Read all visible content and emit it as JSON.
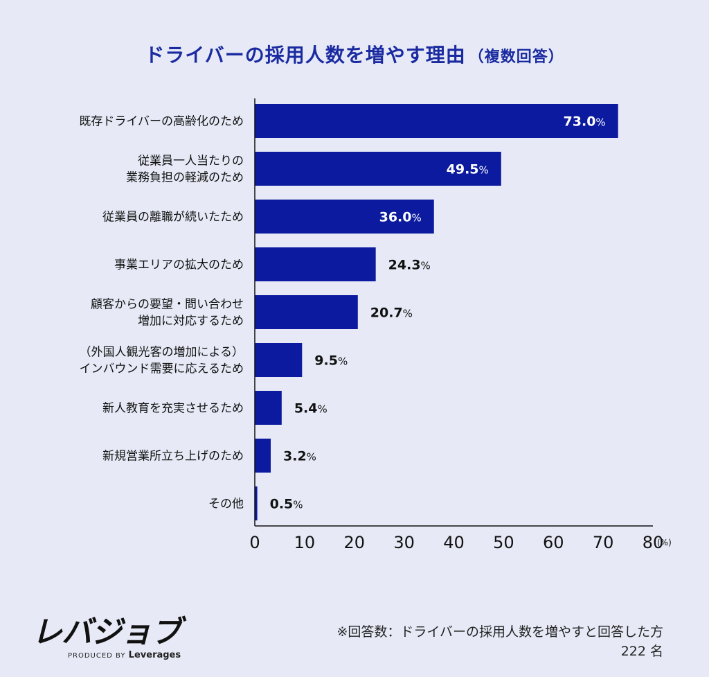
{
  "title": {
    "main": "ドライバーの採用人数を増やす理由",
    "sub": "（複数回答）"
  },
  "chart_data": {
    "type": "bar",
    "orientation": "horizontal",
    "title": "ドライバーの採用人数を増やす理由（複数回答）",
    "categories": [
      [
        "既存ドライバーの高齢化のため"
      ],
      [
        "従業員一人当たりの",
        "業務負担の軽減のため"
      ],
      [
        "従業員の離職が続いたため"
      ],
      [
        "事業エリアの拡大のため"
      ],
      [
        "顧客からの要望・問い合わせ",
        "増加に対応するため"
      ],
      [
        "（外国人観光客の増加による）",
        "インバウンド需要に応えるため"
      ],
      [
        "新人教育を充実させるため"
      ],
      [
        "新規営業所立ち上げのため"
      ],
      [
        "その他"
      ]
    ],
    "values": [
      73.0,
      49.5,
      36.0,
      24.3,
      20.7,
      9.5,
      5.4,
      3.2,
      0.5
    ],
    "value_labels": [
      "73.0",
      "49.5",
      "36.0",
      "24.3",
      "20.7",
      "9.5",
      "5.4",
      "3.2",
      "0.5"
    ],
    "value_unit": "%",
    "xlim": [
      0,
      80
    ],
    "xticks": [
      0,
      10,
      20,
      30,
      40,
      50,
      60,
      70,
      80
    ],
    "xunit": "(%)",
    "bar_color": "#0b1a9e",
    "grid": false
  },
  "logo": {
    "main": "レバジョブ",
    "produced_by": "PRODUCED BY",
    "brand": "Leverages"
  },
  "note": {
    "line1": "※回答数：ドライバーの採用人数を増やすと回答した方",
    "line2": "222 名"
  }
}
